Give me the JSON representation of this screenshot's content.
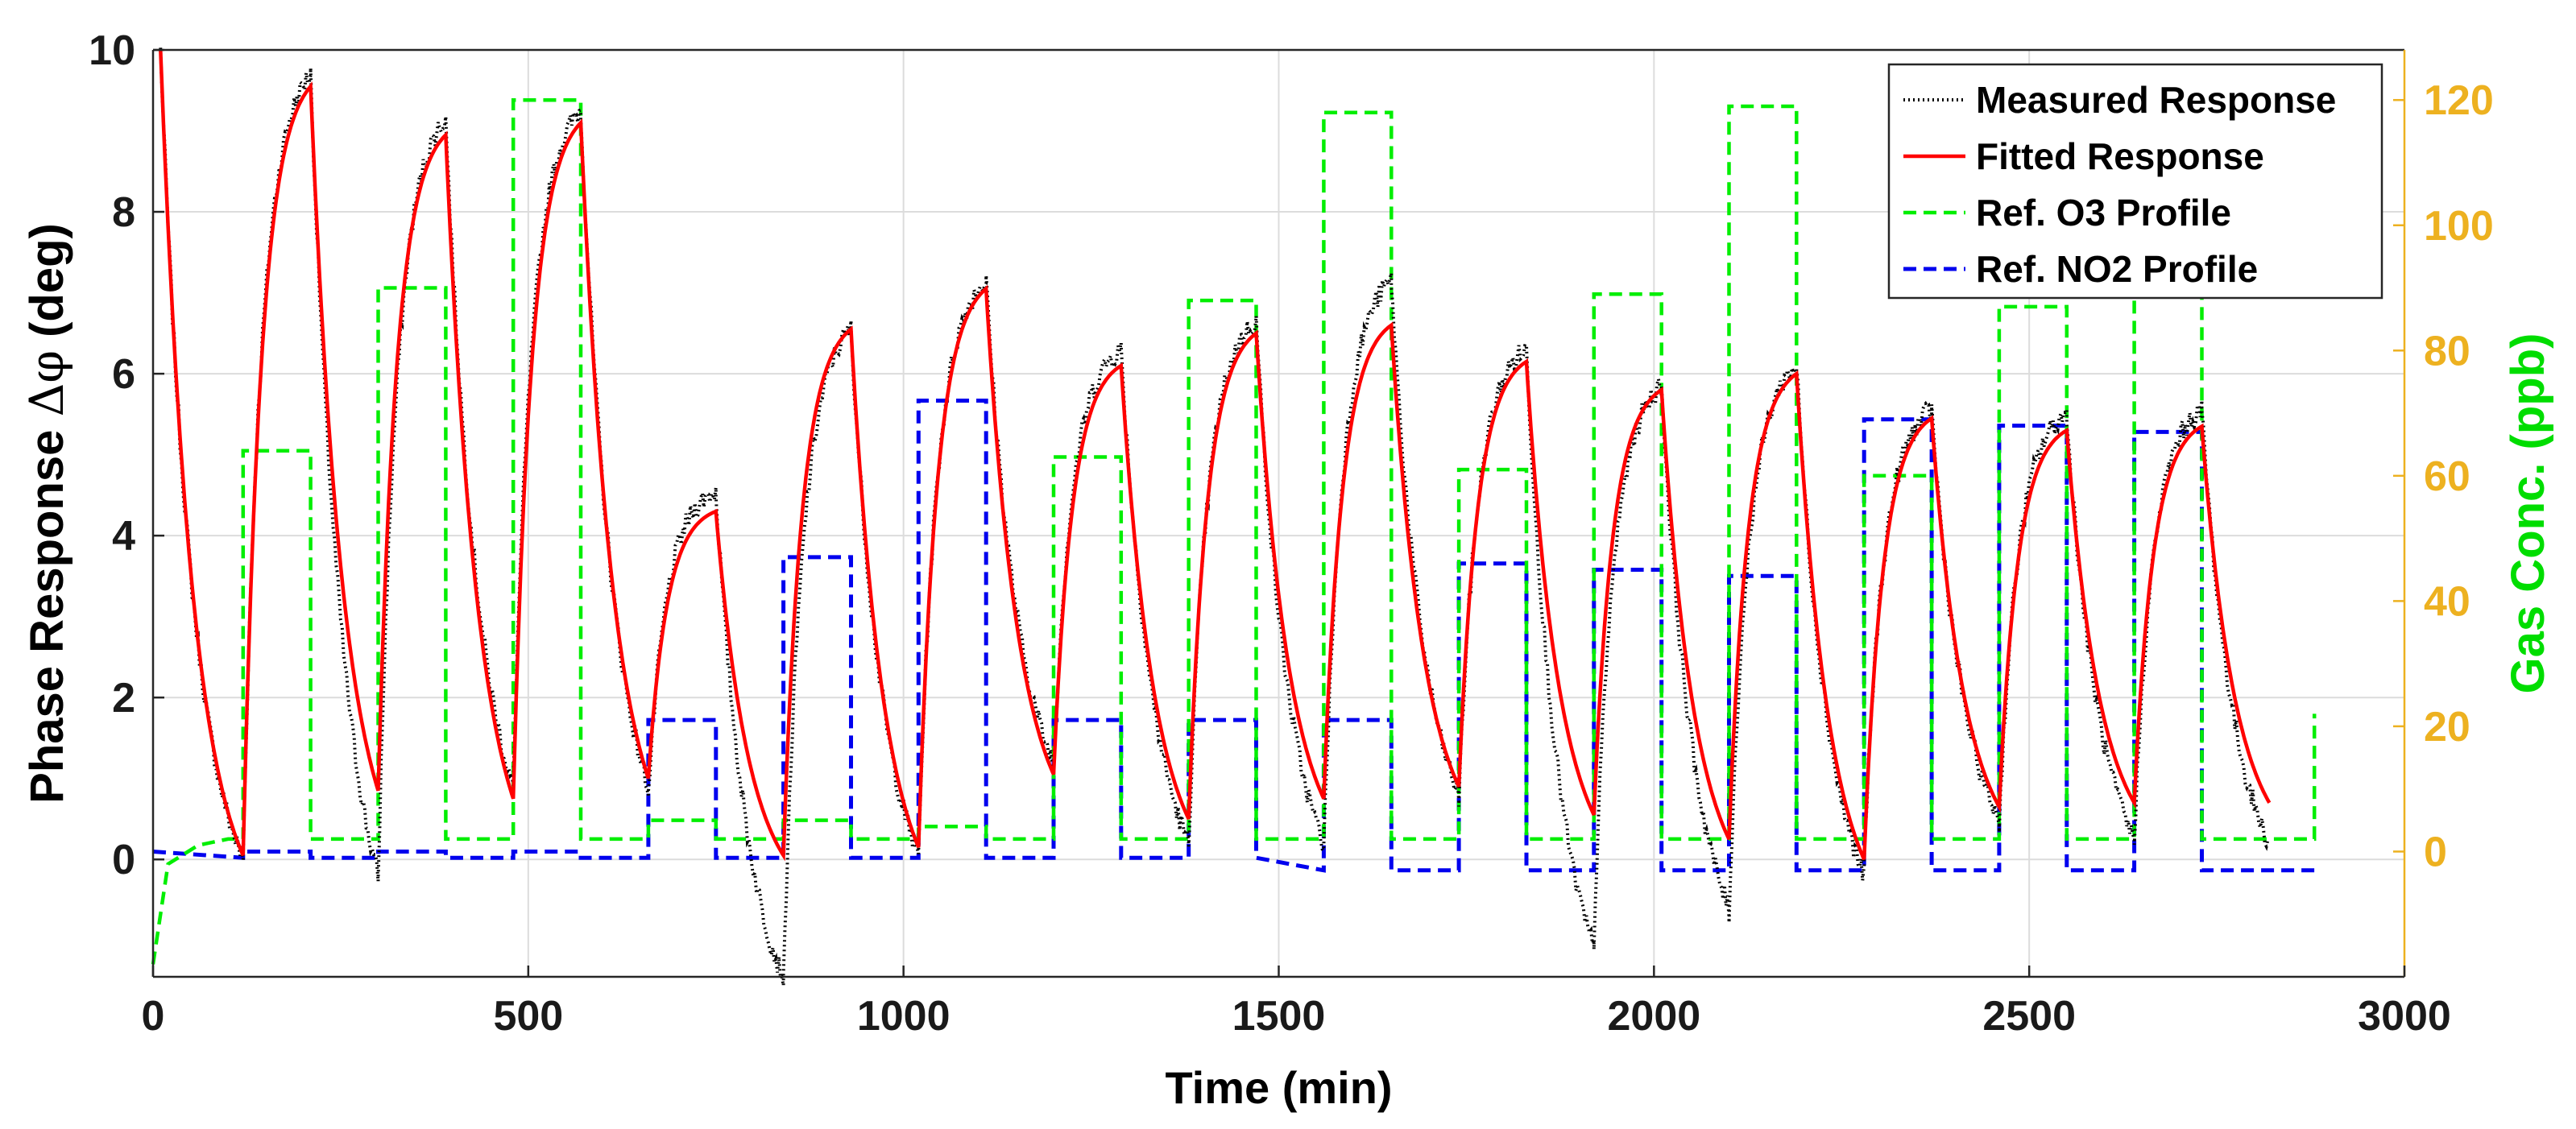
{
  "chart_data": {
    "type": "line",
    "xlabel": "Time (min)",
    "ylabel_left": "Phase Response",
    "ylabel_left_symbol": "Δφ",
    "ylabel_left_unit": "(deg)",
    "ylabel_right": "Gas Conc. (ppb)",
    "xlim": [
      0,
      3000
    ],
    "ylim_left": [
      -1.45,
      10
    ],
    "ylim_right": [
      -20,
      128
    ],
    "xticks": [
      0,
      500,
      1000,
      1500,
      2000,
      2500,
      3000
    ],
    "yticks_left": [
      0,
      2,
      4,
      6,
      8,
      10
    ],
    "yticks_right": [
      0,
      20,
      40,
      60,
      80,
      100,
      120
    ],
    "grid": true,
    "legend_position": "top-right",
    "colors": {
      "measured": "#000000",
      "fitted": "#ff0000",
      "o3": "#00ee00",
      "no2": "#0000ee",
      "right_axis": "#edb120",
      "right_label": "#00dd00"
    },
    "legend": [
      {
        "label": "Measured Response",
        "series": "measured",
        "style": "dotted"
      },
      {
        "label": "Fitted Response",
        "series": "fitted",
        "style": "solid"
      },
      {
        "label": "Ref. O3 Profile",
        "series": "o3",
        "style": "dashed"
      },
      {
        "label": "Ref. NO2 Profile",
        "series": "no2",
        "style": "dashed"
      }
    ],
    "cycles": [
      {
        "start": 120,
        "end": 210,
        "peak_fit": 9.55,
        "low_fit": 0.05,
        "o3": 64,
        "no2": 0,
        "peak_meas": 9.7,
        "low_meas": 0.0
      },
      {
        "start": 300,
        "end": 390,
        "peak_fit": 8.95,
        "low_fit": 0.85,
        "o3": 90,
        "no2": 0,
        "peak_meas": 9.15,
        "low_meas": -0.2
      },
      {
        "start": 480,
        "end": 570,
        "peak_fit": 9.1,
        "low_fit": 0.75,
        "o3": 120,
        "no2": 0,
        "peak_meas": 9.25,
        "low_meas": 0.9
      },
      {
        "start": 660,
        "end": 750,
        "peak_fit": 4.3,
        "low_fit": 1.0,
        "o3": 5,
        "no2": 21,
        "peak_meas": 4.55,
        "low_meas": 0.9
      },
      {
        "start": 840,
        "end": 930,
        "peak_fit": 6.55,
        "low_fit": 0.05,
        "o3": 5,
        "no2": 47,
        "peak_meas": 6.55,
        "low_meas": -1.45
      },
      {
        "start": 1020,
        "end": 1110,
        "peak_fit": 7.05,
        "low_fit": 0.15,
        "o3": 4,
        "no2": 72,
        "peak_meas": 7.15,
        "low_meas": 0.05
      },
      {
        "start": 1200,
        "end": 1290,
        "peak_fit": 6.1,
        "low_fit": 1.05,
        "o3": 63,
        "no2": 21,
        "peak_meas": 6.3,
        "low_meas": 1.2
      },
      {
        "start": 1380,
        "end": 1470,
        "peak_fit": 6.5,
        "low_fit": 0.5,
        "o3": 88,
        "no2": 21,
        "peak_meas": 6.65,
        "low_meas": 0.2
      },
      {
        "start": 1560,
        "end": 1650,
        "peak_fit": 6.6,
        "low_fit": 0.75,
        "o3": 118,
        "no2": 21,
        "peak_meas": 7.15,
        "low_meas": 0.2
      },
      {
        "start": 1740,
        "end": 1830,
        "peak_fit": 6.15,
        "low_fit": 0.9,
        "o3": 61,
        "no2": 46,
        "peak_meas": 6.3,
        "low_meas": 0.8
      },
      {
        "start": 1920,
        "end": 2010,
        "peak_fit": 5.8,
        "low_fit": 0.55,
        "o3": 89,
        "no2": 45,
        "peak_meas": 5.85,
        "low_meas": -1.1
      },
      {
        "start": 2100,
        "end": 2190,
        "peak_fit": 6.0,
        "low_fit": 0.25,
        "o3": 119,
        "no2": 44,
        "peak_meas": 6.1,
        "low_meas": -0.6
      },
      {
        "start": 2280,
        "end": 2370,
        "peak_fit": 5.45,
        "low_fit": 0.0,
        "o3": 60,
        "no2": 69,
        "peak_meas": 5.55,
        "low_meas": -0.2
      },
      {
        "start": 2460,
        "end": 2550,
        "peak_fit": 5.3,
        "low_fit": 0.65,
        "o3": 87,
        "no2": 68,
        "peak_meas": 5.5,
        "low_meas": 0.5
      },
      {
        "start": 2640,
        "end": 2730,
        "peak_fit": 5.35,
        "low_fit": 0.7,
        "o3": 118,
        "no2": 67,
        "peak_meas": 5.55,
        "low_meas": 0.25
      }
    ],
    "initial_fit_value": 10,
    "fit_end": {
      "x": 2820,
      "y": 0.7
    },
    "measured_end": {
      "x": 2820,
      "y": 0.2
    },
    "o3_baseline": 2,
    "no2_baseline": -1,
    "no2_baseline_end": -3,
    "o3_tail": {
      "x": 2880,
      "y": 22
    },
    "series_end_time": 2880
  }
}
